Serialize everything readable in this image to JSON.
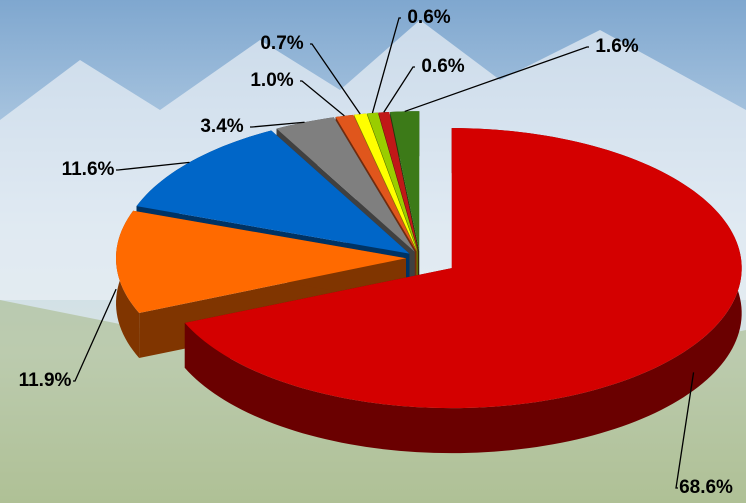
{
  "chart_data": {
    "type": "pie3d",
    "values": [
      68.6,
      11.9,
      11.6,
      3.4,
      1.0,
      0.7,
      0.6,
      0.6,
      1.6
    ],
    "value_labels": [
      "68.6%",
      "11.9%",
      "11.6%",
      "3.4%",
      "1.0%",
      "0.7%",
      "0.6%",
      "0.6%",
      "1.6%"
    ],
    "colors": [
      "#d40000",
      "#ff6a00",
      "#0066c8",
      "#7f7f7f",
      "#e0561c",
      "#ffff00",
      "#9acd00",
      "#c01818",
      "#3c7a18"
    ]
  }
}
